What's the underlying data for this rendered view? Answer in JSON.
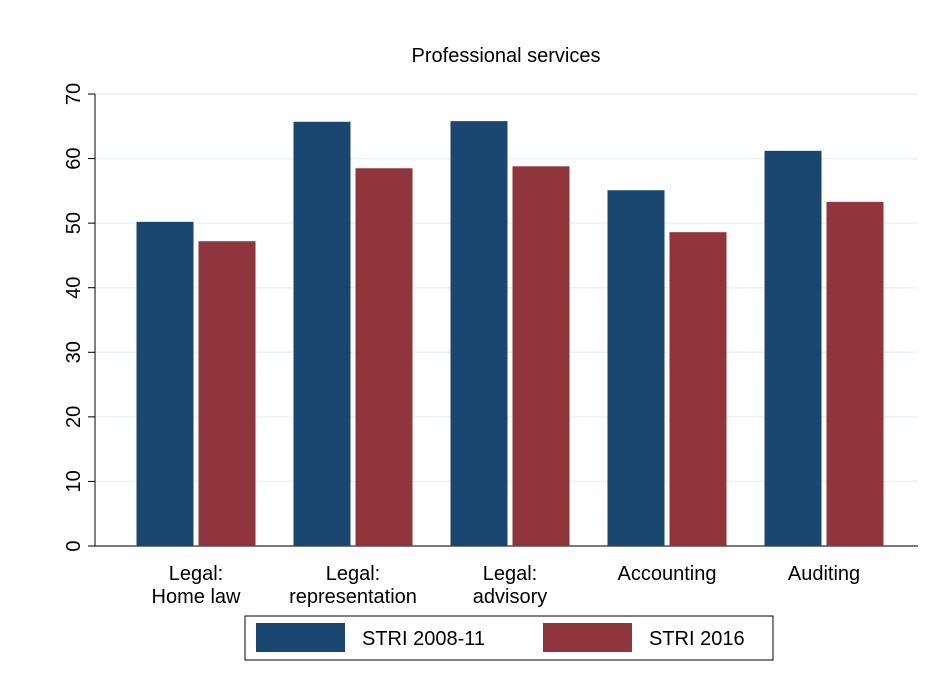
{
  "chart_data": {
    "type": "bar",
    "title": "Professional services",
    "categories": [
      "Legal:\nHome law",
      "Legal:\nrepresentation",
      "Legal:\nadvisory",
      "Accounting",
      "Auditing"
    ],
    "series": [
      {
        "name": "STRI 2008-11",
        "color": "#1a476f",
        "values": [
          50.2,
          65.7,
          65.8,
          55.1,
          61.2
        ]
      },
      {
        "name": "STRI 2016",
        "color": "#90353b",
        "values": [
          47.2,
          58.5,
          58.8,
          48.6,
          53.3
        ]
      }
    ],
    "ylim": [
      0,
      70
    ],
    "yticks": [
      0,
      10,
      20,
      30,
      40,
      50,
      60,
      70
    ],
    "grid": true,
    "legend": "bottom"
  }
}
